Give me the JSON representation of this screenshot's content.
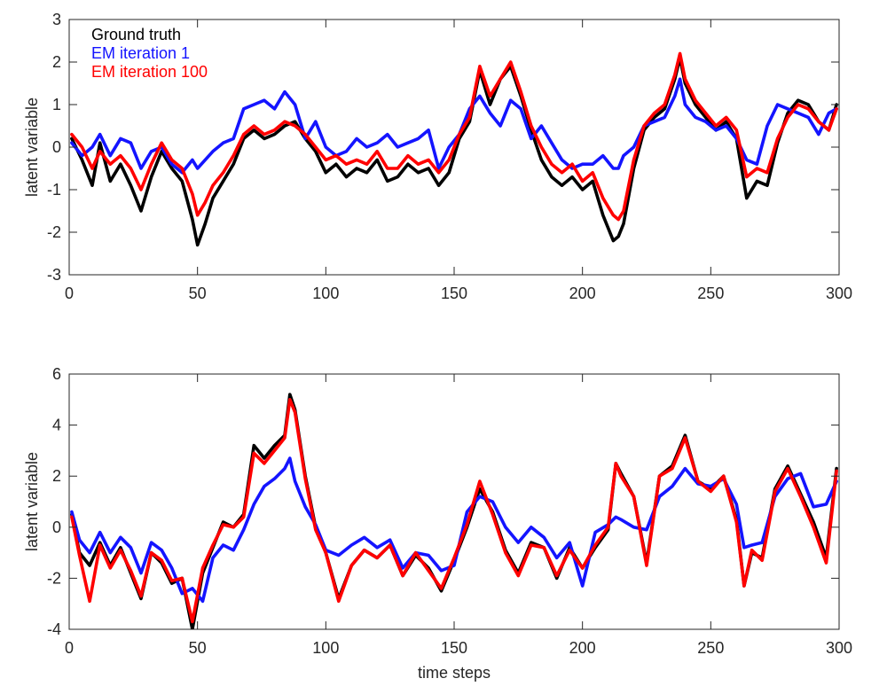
{
  "chart_data": [
    {
      "type": "line",
      "title": "",
      "xlabel": "",
      "ylabel": "latent variable",
      "xlim": [
        0,
        300
      ],
      "ylim": [
        -3,
        3
      ],
      "xticks": [
        0,
        50,
        100,
        150,
        200,
        250,
        300
      ],
      "yticks": [
        -3,
        -2,
        -1,
        0,
        1,
        2,
        3
      ],
      "grid": false,
      "legend": {
        "placement": "top-left",
        "box": false
      },
      "series": [
        {
          "name": "Ground truth",
          "color": "#000000",
          "x": [
            1,
            5,
            9,
            12,
            16,
            20,
            24,
            28,
            32,
            36,
            40,
            44,
            48,
            50,
            53,
            56,
            60,
            64,
            68,
            72,
            76,
            80,
            84,
            88,
            92,
            96,
            100,
            104,
            108,
            112,
            116,
            120,
            124,
            128,
            132,
            136,
            140,
            144,
            148,
            152,
            156,
            160,
            164,
            168,
            172,
            176,
            180,
            184,
            188,
            192,
            196,
            200,
            204,
            208,
            212,
            214,
            216,
            220,
            224,
            228,
            232,
            236,
            238,
            240,
            244,
            248,
            252,
            256,
            260,
            264,
            268,
            272,
            276,
            280,
            284,
            288,
            292,
            296,
            299
          ],
          "values": [
            0.2,
            -0.3,
            -0.9,
            0.1,
            -0.8,
            -0.4,
            -0.9,
            -1.5,
            -0.7,
            -0.1,
            -0.5,
            -0.8,
            -1.7,
            -2.3,
            -1.8,
            -1.2,
            -0.8,
            -0.4,
            0.2,
            0.4,
            0.2,
            0.3,
            0.5,
            0.6,
            0.2,
            -0.1,
            -0.6,
            -0.4,
            -0.7,
            -0.5,
            -0.6,
            -0.3,
            -0.8,
            -0.7,
            -0.4,
            -0.6,
            -0.5,
            -0.9,
            -0.6,
            0.2,
            0.6,
            1.8,
            1.0,
            1.6,
            1.9,
            1.2,
            0.4,
            -0.3,
            -0.7,
            -0.9,
            -0.7,
            -1.0,
            -0.8,
            -1.6,
            -2.2,
            -2.1,
            -1.8,
            -0.5,
            0.4,
            0.7,
            0.9,
            1.6,
            2.1,
            1.5,
            1.0,
            0.7,
            0.4,
            0.6,
            0.2,
            -1.2,
            -0.8,
            -0.9,
            0.1,
            0.8,
            1.1,
            1.0,
            0.6,
            0.4,
            1.0
          ]
        },
        {
          "name": "EM iteration 1",
          "color": "#1414ff",
          "x": [
            1,
            5,
            9,
            12,
            16,
            20,
            24,
            28,
            32,
            36,
            40,
            44,
            48,
            50,
            53,
            56,
            60,
            64,
            68,
            72,
            76,
            80,
            84,
            88,
            92,
            96,
            100,
            104,
            108,
            112,
            116,
            120,
            124,
            128,
            132,
            136,
            140,
            144,
            148,
            152,
            156,
            160,
            164,
            168,
            172,
            176,
            180,
            184,
            188,
            192,
            196,
            200,
            204,
            208,
            212,
            214,
            216,
            220,
            224,
            228,
            232,
            236,
            238,
            240,
            244,
            248,
            252,
            256,
            260,
            264,
            268,
            272,
            276,
            280,
            284,
            288,
            292,
            296,
            299
          ],
          "values": [
            0.1,
            -0.2,
            0.0,
            0.3,
            -0.2,
            0.2,
            0.1,
            -0.5,
            -0.1,
            0.0,
            -0.4,
            -0.6,
            -0.3,
            -0.5,
            -0.3,
            -0.1,
            0.1,
            0.2,
            0.9,
            1.0,
            1.1,
            0.9,
            1.3,
            1.0,
            0.2,
            0.6,
            0.0,
            -0.2,
            -0.1,
            0.2,
            0.0,
            0.1,
            0.3,
            0.0,
            0.1,
            0.2,
            0.4,
            -0.5,
            0.0,
            0.3,
            0.9,
            1.2,
            0.8,
            0.5,
            1.1,
            0.9,
            0.2,
            0.5,
            0.1,
            -0.3,
            -0.5,
            -0.4,
            -0.4,
            -0.2,
            -0.5,
            -0.5,
            -0.2,
            0.0,
            0.5,
            0.6,
            0.7,
            1.2,
            1.6,
            1.0,
            0.7,
            0.6,
            0.4,
            0.5,
            0.2,
            -0.3,
            -0.4,
            0.5,
            1.0,
            0.9,
            0.8,
            0.7,
            0.3,
            0.8,
            0.9
          ]
        },
        {
          "name": "EM iteration 100",
          "color": "#ff0000",
          "x": [
            1,
            5,
            9,
            12,
            16,
            20,
            24,
            28,
            32,
            36,
            40,
            44,
            48,
            50,
            53,
            56,
            60,
            64,
            68,
            72,
            76,
            80,
            84,
            88,
            92,
            96,
            100,
            104,
            108,
            112,
            116,
            120,
            124,
            128,
            132,
            136,
            140,
            144,
            148,
            152,
            156,
            160,
            164,
            168,
            172,
            176,
            180,
            184,
            188,
            192,
            196,
            200,
            204,
            208,
            212,
            214,
            216,
            220,
            224,
            228,
            232,
            236,
            238,
            240,
            244,
            248,
            252,
            256,
            260,
            264,
            268,
            272,
            276,
            280,
            284,
            288,
            292,
            296,
            299
          ],
          "values": [
            0.3,
            0.0,
            -0.5,
            -0.1,
            -0.4,
            -0.2,
            -0.5,
            -1.0,
            -0.4,
            0.1,
            -0.3,
            -0.5,
            -1.1,
            -1.6,
            -1.3,
            -0.9,
            -0.6,
            -0.2,
            0.3,
            0.5,
            0.3,
            0.4,
            0.6,
            0.5,
            0.3,
            0.0,
            -0.3,
            -0.2,
            -0.4,
            -0.3,
            -0.4,
            -0.1,
            -0.5,
            -0.5,
            -0.2,
            -0.4,
            -0.3,
            -0.6,
            -0.3,
            0.3,
            0.7,
            1.9,
            1.2,
            1.6,
            2.0,
            1.3,
            0.5,
            0.0,
            -0.4,
            -0.6,
            -0.4,
            -0.8,
            -0.6,
            -1.2,
            -1.6,
            -1.7,
            -1.5,
            -0.3,
            0.5,
            0.8,
            1.0,
            1.7,
            2.2,
            1.6,
            1.1,
            0.8,
            0.5,
            0.7,
            0.4,
            -0.7,
            -0.5,
            -0.6,
            0.2,
            0.7,
            1.0,
            0.9,
            0.6,
            0.4,
            0.9
          ]
        }
      ]
    },
    {
      "type": "line",
      "title": "",
      "xlabel": "time steps",
      "ylabel": "latent variable",
      "xlim": [
        0,
        300
      ],
      "ylim": [
        -4,
        6
      ],
      "xticks": [
        0,
        50,
        100,
        150,
        200,
        250,
        300
      ],
      "yticks": [
        -4,
        -2,
        0,
        2,
        4,
        6
      ],
      "grid": false,
      "series": [
        {
          "name": "Ground truth",
          "color": "#000000",
          "x": [
            1,
            4,
            8,
            12,
            16,
            20,
            24,
            28,
            32,
            36,
            40,
            44,
            48,
            52,
            56,
            60,
            64,
            68,
            72,
            76,
            80,
            84,
            86,
            88,
            92,
            96,
            100,
            105,
            110,
            115,
            120,
            125,
            130,
            135,
            140,
            145,
            150,
            155,
            160,
            165,
            170,
            175,
            180,
            185,
            190,
            195,
            200,
            205,
            210,
            213,
            215,
            220,
            225,
            230,
            235,
            240,
            245,
            250,
            255,
            260,
            263,
            266,
            270,
            275,
            280,
            285,
            290,
            295,
            299
          ],
          "values": [
            0.5,
            -1.0,
            -1.5,
            -0.6,
            -1.5,
            -0.8,
            -1.8,
            -2.8,
            -1.0,
            -1.4,
            -2.2,
            -2.0,
            -4.0,
            -1.8,
            -0.8,
            0.2,
            0.0,
            0.5,
            3.2,
            2.7,
            3.2,
            3.6,
            5.2,
            4.6,
            2.0,
            0.0,
            -1.0,
            -2.8,
            -1.5,
            -0.9,
            -1.2,
            -0.7,
            -1.9,
            -1.1,
            -1.6,
            -2.5,
            -1.3,
            0.0,
            1.5,
            0.6,
            -0.9,
            -1.8,
            -0.6,
            -0.8,
            -2.0,
            -0.8,
            -1.6,
            -0.8,
            -0.1,
            2.5,
            2.1,
            1.2,
            -1.4,
            2.0,
            2.4,
            3.6,
            1.8,
            1.5,
            2.0,
            0.3,
            -2.3,
            -1.0,
            -1.2,
            1.5,
            2.4,
            1.3,
            0.2,
            -1.2,
            2.3
          ]
        },
        {
          "name": "EM iteration 1",
          "color": "#1414ff",
          "x": [
            1,
            4,
            8,
            12,
            16,
            20,
            24,
            28,
            32,
            36,
            40,
            44,
            48,
            52,
            56,
            60,
            64,
            68,
            72,
            76,
            80,
            84,
            86,
            88,
            92,
            96,
            100,
            105,
            110,
            115,
            120,
            125,
            130,
            135,
            140,
            145,
            150,
            155,
            160,
            165,
            170,
            175,
            180,
            185,
            190,
            195,
            200,
            205,
            210,
            213,
            215,
            220,
            225,
            230,
            235,
            240,
            245,
            250,
            255,
            260,
            263,
            266,
            270,
            275,
            280,
            285,
            290,
            295,
            299
          ],
          "values": [
            0.6,
            -0.5,
            -1.0,
            -0.2,
            -1.0,
            -0.4,
            -0.8,
            -1.8,
            -0.6,
            -0.9,
            -1.6,
            -2.6,
            -2.4,
            -2.9,
            -1.2,
            -0.7,
            -0.9,
            -0.1,
            0.9,
            1.6,
            1.9,
            2.3,
            2.7,
            1.8,
            0.8,
            0.1,
            -0.9,
            -1.1,
            -0.7,
            -0.4,
            -0.8,
            -0.5,
            -1.6,
            -1.0,
            -1.1,
            -1.7,
            -1.5,
            0.6,
            1.2,
            1.0,
            0.0,
            -0.6,
            0.0,
            -0.4,
            -1.2,
            -0.6,
            -2.3,
            -0.2,
            0.1,
            0.4,
            0.3,
            0.0,
            -0.1,
            1.2,
            1.6,
            2.3,
            1.7,
            1.6,
            1.9,
            0.9,
            -0.8,
            -0.7,
            -0.6,
            1.2,
            1.9,
            2.1,
            0.8,
            0.9,
            1.8
          ]
        },
        {
          "name": "EM iteration 100",
          "color": "#ff0000",
          "x": [
            1,
            4,
            8,
            12,
            16,
            20,
            24,
            28,
            32,
            36,
            40,
            44,
            48,
            52,
            56,
            60,
            64,
            68,
            72,
            76,
            80,
            84,
            86,
            88,
            92,
            96,
            100,
            105,
            110,
            115,
            120,
            125,
            130,
            135,
            140,
            145,
            150,
            155,
            160,
            165,
            170,
            175,
            180,
            185,
            190,
            195,
            200,
            205,
            210,
            213,
            215,
            220,
            225,
            230,
            235,
            240,
            245,
            250,
            255,
            260,
            263,
            266,
            270,
            275,
            280,
            285,
            290,
            295,
            299
          ],
          "values": [
            0.4,
            -1.1,
            -2.9,
            -0.7,
            -1.6,
            -0.9,
            -1.7,
            -2.7,
            -1.0,
            -1.3,
            -2.1,
            -2.0,
            -3.7,
            -1.6,
            -0.7,
            0.1,
            0.0,
            0.4,
            2.9,
            2.5,
            3.0,
            3.5,
            5.0,
            4.5,
            1.9,
            -0.1,
            -1.0,
            -2.9,
            -1.5,
            -0.9,
            -1.2,
            -0.7,
            -1.9,
            -1.0,
            -1.7,
            -2.4,
            -1.2,
            0.1,
            1.8,
            0.5,
            -1.0,
            -1.9,
            -0.7,
            -0.8,
            -1.9,
            -0.9,
            -1.6,
            -0.7,
            0.0,
            2.5,
            2.0,
            1.2,
            -1.5,
            2.0,
            2.3,
            3.5,
            1.8,
            1.4,
            2.0,
            0.2,
            -2.3,
            -0.9,
            -1.3,
            1.4,
            2.3,
            1.2,
            0.0,
            -1.4,
            2.2
          ]
        }
      ]
    }
  ]
}
